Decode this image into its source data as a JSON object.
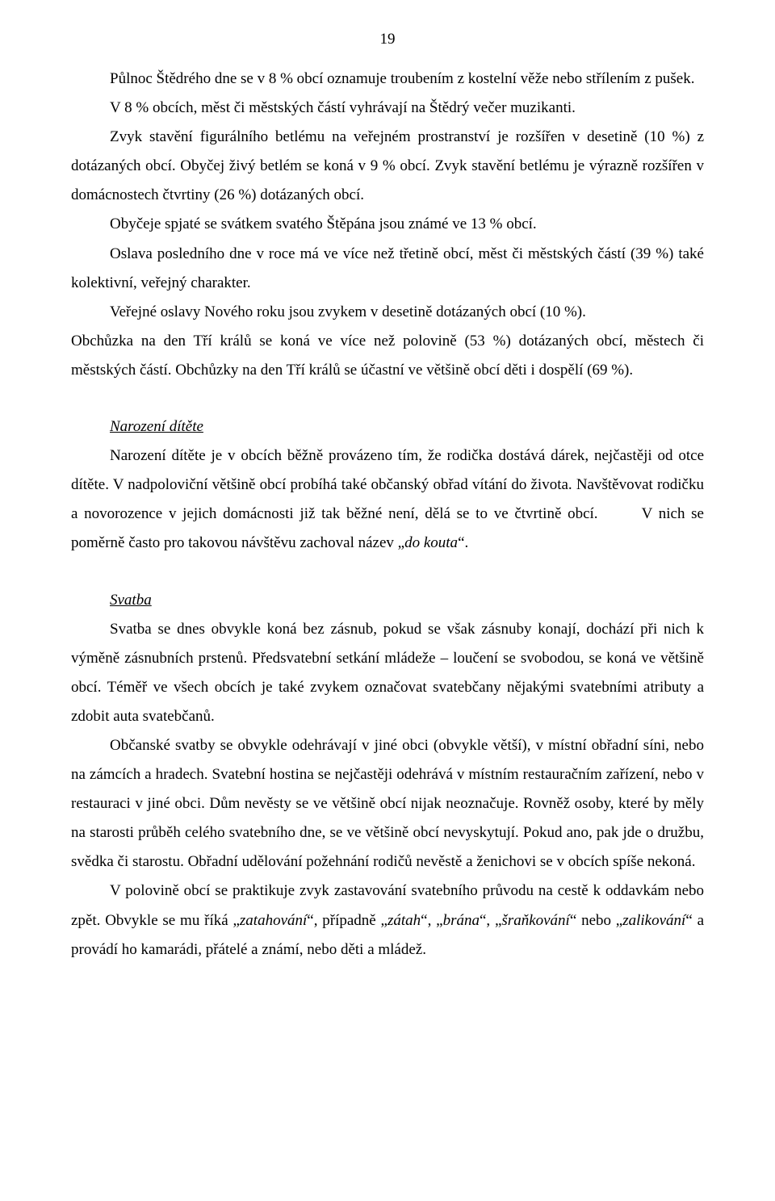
{
  "page_number": "19",
  "paragraphs": {
    "p1": "Půlnoc Štědrého dne se v 8 % obcí oznamuje troubením z kostelní věže nebo střílením z pušek.",
    "p2": "V 8 % obcích, měst či městských částí vyhrávají na Štědrý večer muzikanti.",
    "p3": "Zvyk stavění figurálního betlému na veřejném prostranství je rozšířen v desetině (10 %) z dotázaných obcí. Obyčej živý betlém se koná v 9 % obcí. Zvyk stavění betlému je výrazně rozšířen v domácnostech čtvrtiny (26 %) dotázaných obcí.",
    "p4": "Obyčeje spjaté se svátkem svatého Štěpána jsou známé ve 13 % obcí.",
    "p5": "Oslava posledního dne v roce má ve více než třetině obcí, měst či městských částí (39 %) také kolektivní, veřejný charakter.",
    "p6": "Veřejné oslavy Nového roku jsou zvykem v desetině dotázaných obcí (10 %).",
    "p7": "Obchůzka na den Tří králů se koná ve více než polovině (53 %) dotázaných obcí, městech či městských částí. Obchůzky na den Tří králů se účastní ve většině obcí děti i dospělí (69 %).",
    "h1": "Narození dítěte",
    "p8_a": "Narození dítěte je v obcích běžně provázeno tím, že rodička dostává dárek, nejčastěji od otce dítěte. V nadpoloviční většině obcí probíhá také občanský obřad vítání do života. Navštěvovat rodičku a novorozence v jejich domácnosti již tak běžné není, dělá se to ve čtvrtině obcí.       V nich se poměrně často pro takovou návštěvu zachoval název „",
    "p8_em": "do kouta",
    "p8_b": "“.",
    "h2": "Svatba",
    "p9": "Svatba se dnes obvykle koná bez zásnub, pokud se však zásnuby konají, dochází při nich k výměně zásnubních prstenů. Předsvatební setkání mládeže – loučení se svobodou, se koná ve většině obcí. Téměř ve všech obcích je také zvykem označovat svatebčany nějakými svatebními atributy a zdobit auta svatebčanů.",
    "p10": "Občanské svatby se obvykle odehrávají v jiné obci (obvykle větší), v místní obřadní síni, nebo na zámcích a hradech. Svatební hostina se nejčastěji odehrává v místním restauračním zařízení, nebo v restauraci v jiné obci. Dům nevěsty se ve většině obcí nijak neoznačuje. Rovněž osoby, které by měly na starosti průběh celého svatebního dne, se ve většině obcí nevyskytují. Pokud ano, pak jde o družbu, svědka či starostu. Obřadní udělování požehnání rodičů nevěstě a ženichovi se v obcích spíše nekoná.",
    "p11_a": "V polovině obcí se praktikuje zvyk zastavování svatebního průvodu na cestě k oddavkám nebo zpět. Obvykle se mu říká „",
    "p11_em1": "zatahování",
    "p11_b": "“, případně „",
    "p11_em2": "zátah",
    "p11_c": "“, „",
    "p11_em3": "brána",
    "p11_d": "“, „",
    "p11_em4": "šraňkování",
    "p11_e": "“ nebo „",
    "p11_em5": "zalikování",
    "p11_f": "“ a provádí ho kamarádi, přátelé a známí, nebo děti a mládež."
  }
}
